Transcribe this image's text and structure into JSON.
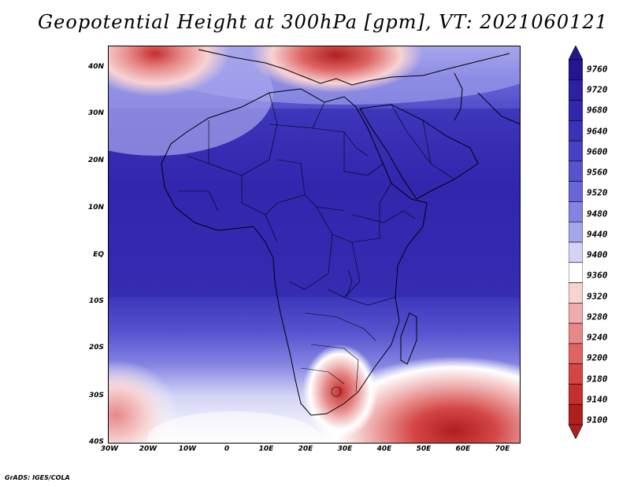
{
  "title": "Geopotential Height at 300hPa [gpm], VT: 2021060121",
  "credit": "GrADS: IGES/COLA",
  "latitude_labels": [
    "40N",
    "30N",
    "20N",
    "10N",
    "EQ",
    "10S",
    "20S",
    "30S",
    "40S"
  ],
  "longitude_labels": [
    "30W",
    "20W",
    "10W",
    "0",
    "10E",
    "20E",
    "30E",
    "40E",
    "50E",
    "60E",
    "70E"
  ],
  "colorbar": {
    "levels": [
      "9760",
      "9720",
      "9680",
      "9640",
      "9600",
      "9560",
      "9520",
      "9480",
      "9440",
      "9400",
      "9360",
      "9320",
      "9280",
      "9240",
      "9200",
      "9180",
      "9140",
      "9100"
    ],
    "colors": [
      "#24168f",
      "#2c229f",
      "#3226ad",
      "#3a33b8",
      "#4741c4",
      "#5753cf",
      "#6866d9",
      "#8483e2",
      "#a6a6ec",
      "#d3d3f6",
      "#ffffff",
      "#f7d3d3",
      "#efacac",
      "#e78888",
      "#de6464",
      "#d44545",
      "#c52f2f",
      "#b01f1f"
    ]
  }
}
